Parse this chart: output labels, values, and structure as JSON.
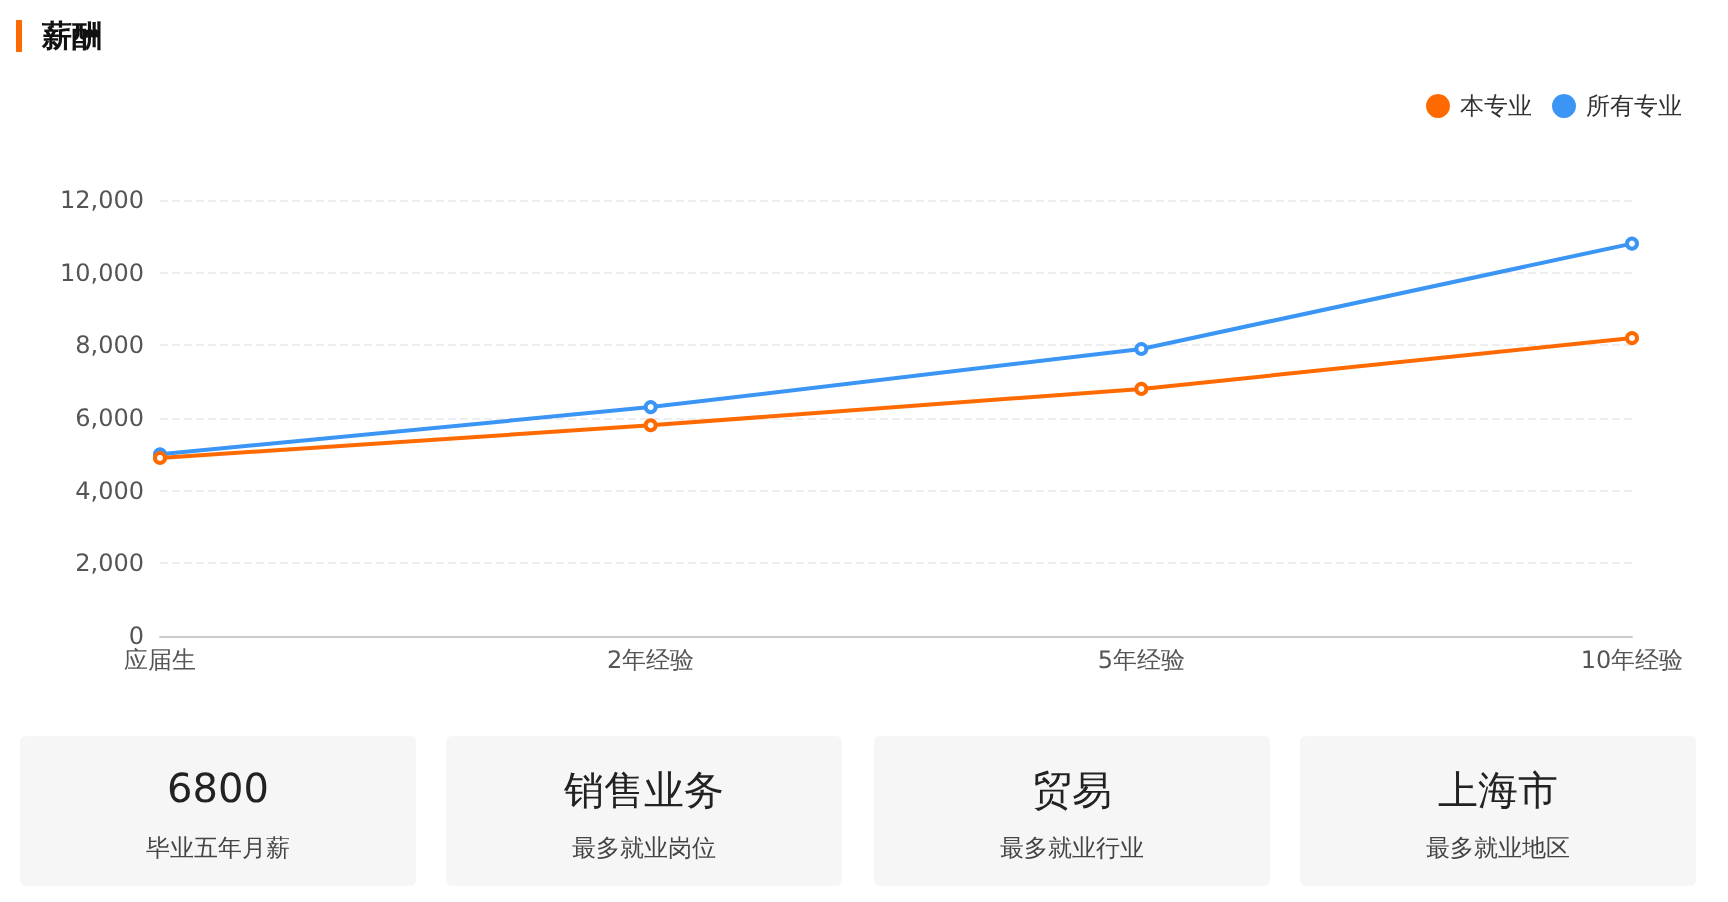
{
  "chart_data": [
    {
      "type": "line",
      "title": "薪酬",
      "categories": [
        "应届生",
        "2年经验",
        "5年经验",
        "10年经验"
      ],
      "series": [
        {
          "name": "本专业",
          "color": "#ff6a00",
          "values": [
            4900,
            5800,
            6800,
            8200
          ]
        },
        {
          "name": "所有专业",
          "color": "#3a95f5",
          "values": [
            5000,
            6300,
            7900,
            10800
          ]
        }
      ],
      "ylim": [
        0,
        12000
      ],
      "yticks": [
        {
          "value": 0,
          "label": "0"
        },
        {
          "value": 2000,
          "label": "2,000"
        },
        {
          "value": 4000,
          "label": "4,000"
        },
        {
          "value": 6000,
          "label": "6,000"
        },
        {
          "value": 8000,
          "label": "8,000"
        },
        {
          "value": 10000,
          "label": "10,000"
        },
        {
          "value": 12000,
          "label": "12,000"
        }
      ],
      "grid": "y",
      "legend": "top right",
      "marker": "circle",
      "line_style": "solid"
    },
    {
      "type": "other",
      "title": "6800",
      "subtitle": "毕业五年月薪"
    },
    {
      "type": "other",
      "title": "销售业务",
      "subtitle": "最多就业岗位"
    },
    {
      "type": "other",
      "title": "贸易",
      "subtitle": "最多就业行业"
    },
    {
      "type": "other",
      "title": "上海市",
      "subtitle": "最多就业地区"
    }
  ]
}
